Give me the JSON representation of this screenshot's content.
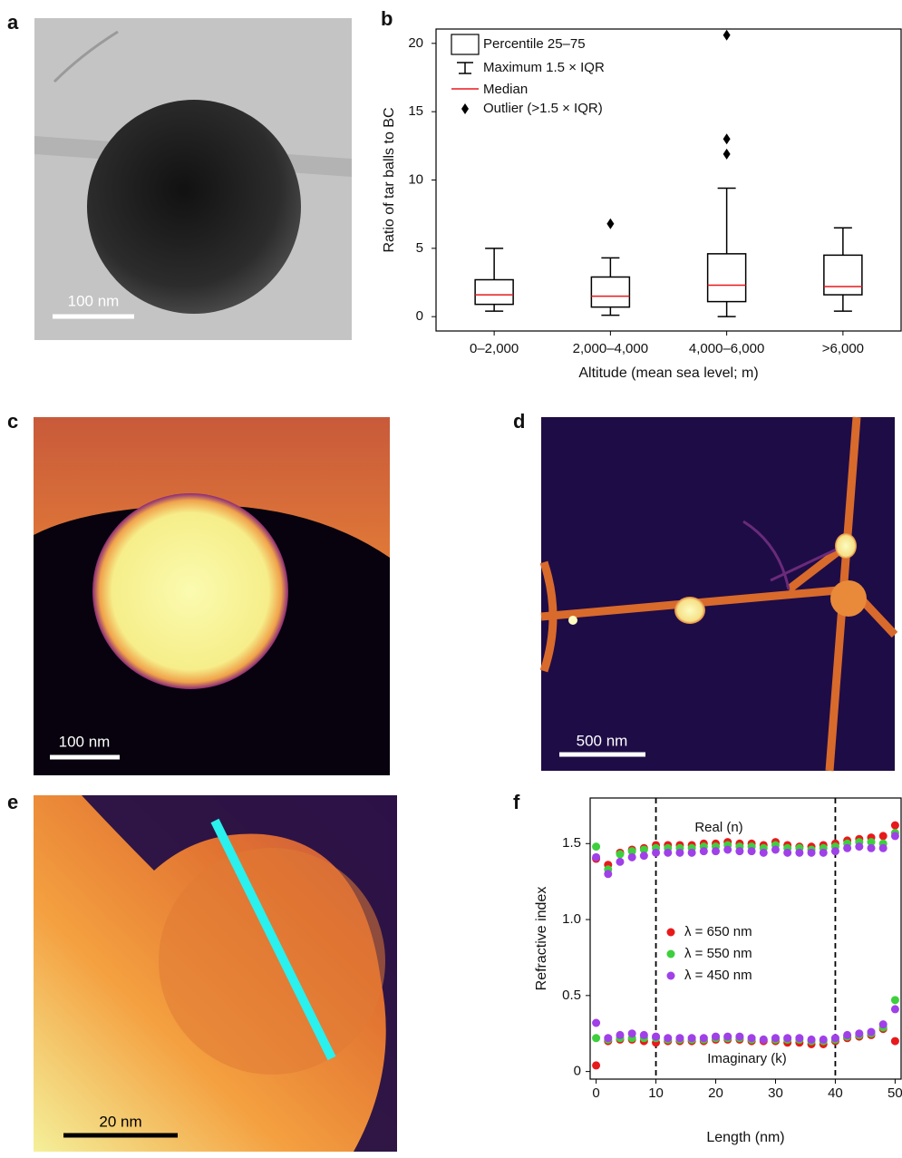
{
  "panels": [
    {
      "label": "a",
      "scale_bar": "100 nm"
    },
    {
      "label": "b"
    },
    {
      "label": "c",
      "scale_bar": "100 nm"
    },
    {
      "label": "d",
      "scale_bar": "500 nm"
    },
    {
      "label": "e",
      "scale_bar": "20 nm"
    },
    {
      "label": "f"
    }
  ],
  "chart_data": [
    {
      "type": "box",
      "x_label": "Altitude (mean sea level; m)",
      "y_label": "Ratio of tar balls to BC",
      "categories": [
        "0–2,000",
        "2,000–4,000",
        "4,000–6,000",
        ">6,000"
      ],
      "ylim": [
        -1.05,
        21.05
      ],
      "yticks": [
        0,
        5,
        10,
        15,
        20
      ],
      "color": "#000000",
      "median_color": "#e8191b",
      "legend_position": "upper left",
      "legend": {
        "box": "Percentile 25–75",
        "whisker": "Maximum 1.5 × IQR",
        "median": "Median",
        "outlier": "Outlier (>1.5 × IQR)"
      },
      "boxes": [
        {
          "whislo": 0.4,
          "q1": 0.9,
          "med": 1.6,
          "q3": 2.7,
          "whishi": 5.0,
          "fliers": []
        },
        {
          "whislo": 0.1,
          "q1": 0.7,
          "med": 1.5,
          "q3": 2.9,
          "whishi": 4.3,
          "fliers": [
            6.8
          ]
        },
        {
          "whislo": 0.0,
          "q1": 1.1,
          "med": 2.3,
          "q3": 4.6,
          "whishi": 9.4,
          "fliers": [
            11.9,
            13.0,
            20.6
          ]
        },
        {
          "whislo": 0.4,
          "q1": 1.6,
          "med": 2.2,
          "q3": 4.5,
          "whishi": 6.5,
          "fliers": []
        }
      ]
    },
    {
      "type": "scatter",
      "x_label": "Length (nm)",
      "y_label": "Refractive index",
      "annotations": [
        "Real (n)",
        "Imaginary (k)"
      ],
      "vlines": [
        10,
        40
      ],
      "xlim": [
        -1,
        51
      ],
      "xticks": [
        0,
        10,
        20,
        30,
        40,
        50
      ],
      "ylim": [
        -0.05,
        1.8
      ],
      "yticks": [
        0,
        0.5,
        {
          "value": 1,
          "label": "1.0"
        },
        1.5
      ],
      "legend_position": "center left",
      "x": [
        0,
        2,
        4,
        6,
        8,
        10,
        12,
        14,
        16,
        18,
        20,
        22,
        24,
        26,
        28,
        30,
        32,
        34,
        36,
        38,
        40,
        42,
        44,
        46,
        48,
        50
      ],
      "series": [
        {
          "name": "λ = 650 nm",
          "color": "#e8191b",
          "n_values": [
            1.4,
            1.36,
            1.44,
            1.46,
            1.47,
            1.49,
            1.49,
            1.49,
            1.49,
            1.5,
            1.5,
            1.51,
            1.5,
            1.5,
            1.49,
            1.51,
            1.49,
            1.48,
            1.48,
            1.49,
            1.5,
            1.52,
            1.53,
            1.54,
            1.55,
            1.62
          ],
          "k_values": [
            0.04,
            0.2,
            0.21,
            0.21,
            0.2,
            0.19,
            0.2,
            0.2,
            0.2,
            0.2,
            0.21,
            0.21,
            0.21,
            0.2,
            0.2,
            0.2,
            0.19,
            0.19,
            0.18,
            0.18,
            0.2,
            0.22,
            0.23,
            0.24,
            0.28,
            0.2
          ]
        },
        {
          "name": "λ = 550 nm",
          "color": "#3ecf3e",
          "n_values": [
            1.48,
            1.33,
            1.43,
            1.45,
            1.46,
            1.47,
            1.47,
            1.47,
            1.47,
            1.48,
            1.48,
            1.49,
            1.48,
            1.48,
            1.47,
            1.49,
            1.47,
            1.47,
            1.46,
            1.47,
            1.48,
            1.5,
            1.51,
            1.51,
            1.5,
            1.57
          ],
          "k_values": [
            0.22,
            0.21,
            0.22,
            0.22,
            0.22,
            0.22,
            0.21,
            0.21,
            0.21,
            0.21,
            0.22,
            0.22,
            0.22,
            0.21,
            0.21,
            0.21,
            0.21,
            0.21,
            0.2,
            0.2,
            0.21,
            0.23,
            0.24,
            0.25,
            0.29,
            0.47
          ]
        },
        {
          "name": "λ = 450 nm",
          "color": "#a040e8",
          "n_values": [
            1.41,
            1.3,
            1.38,
            1.41,
            1.42,
            1.44,
            1.44,
            1.44,
            1.44,
            1.45,
            1.45,
            1.46,
            1.45,
            1.45,
            1.44,
            1.46,
            1.44,
            1.44,
            1.44,
            1.44,
            1.45,
            1.47,
            1.48,
            1.47,
            1.47,
            1.55
          ],
          "k_values": [
            0.32,
            0.22,
            0.24,
            0.25,
            0.24,
            0.23,
            0.22,
            0.22,
            0.22,
            0.22,
            0.23,
            0.23,
            0.23,
            0.22,
            0.21,
            0.22,
            0.22,
            0.22,
            0.21,
            0.21,
            0.22,
            0.24,
            0.25,
            0.26,
            0.31,
            0.41
          ]
        }
      ]
    }
  ]
}
